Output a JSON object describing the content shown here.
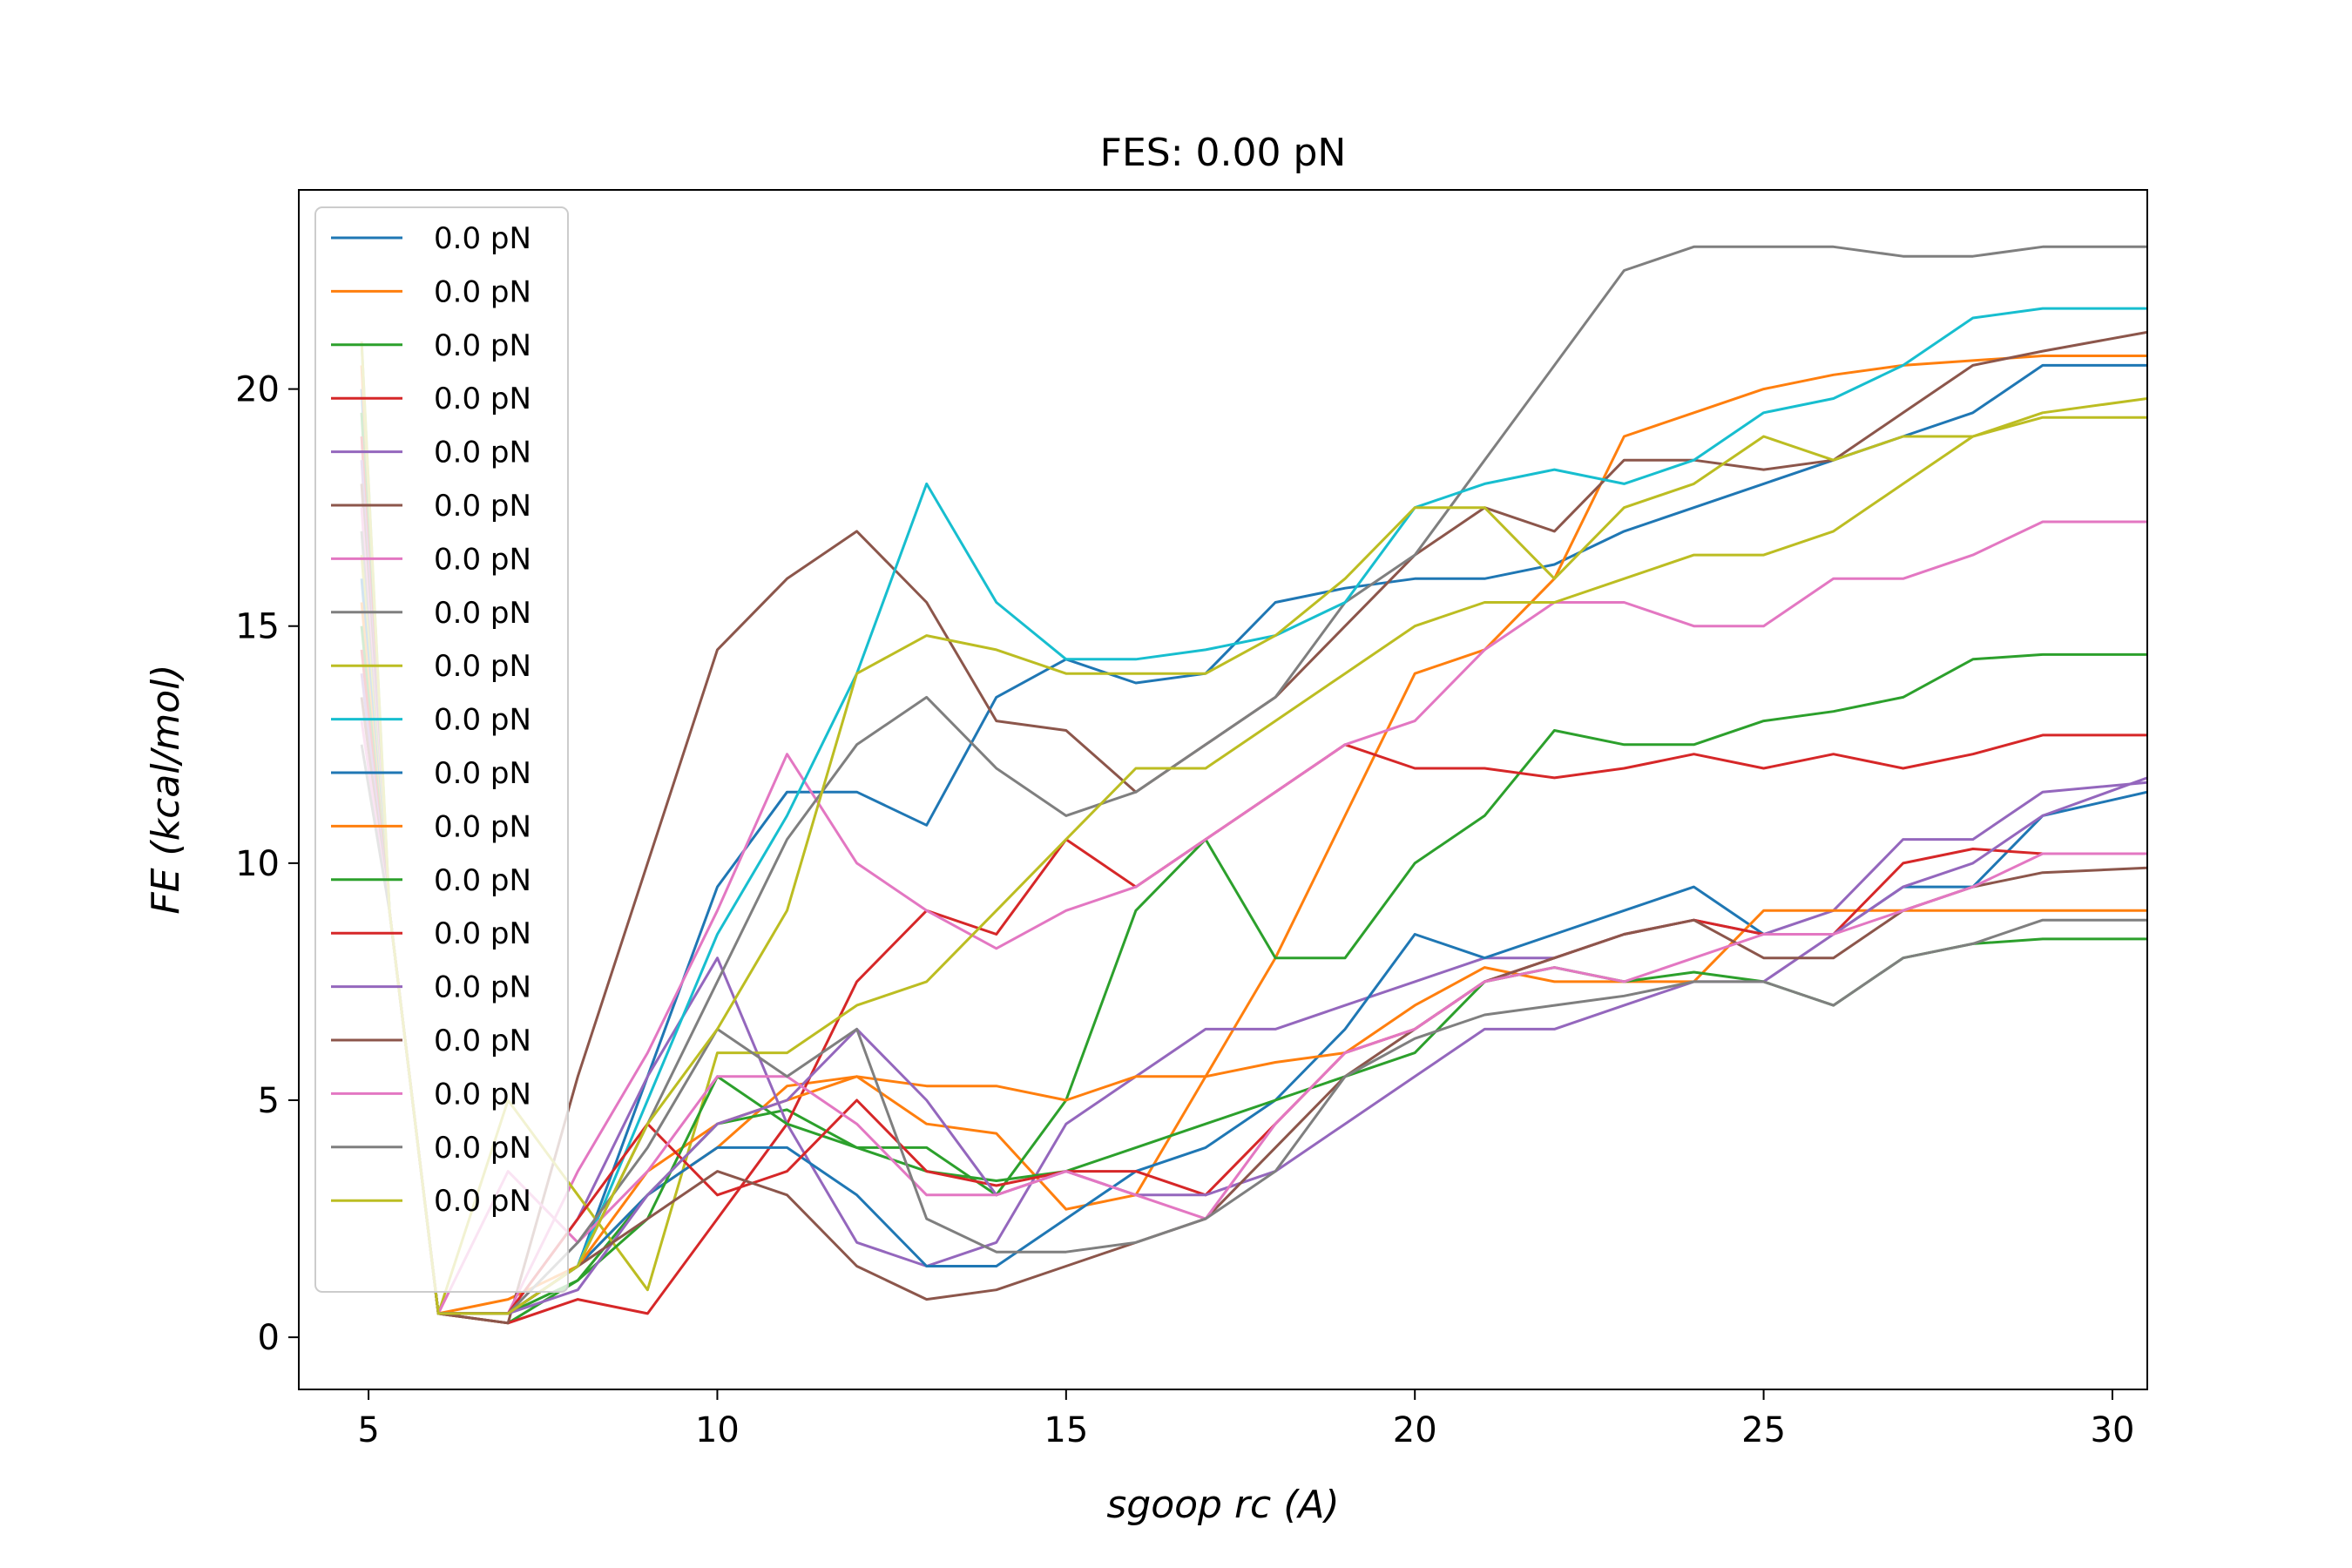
{
  "chart_data": {
    "type": "line",
    "title": "FES: 0.00 pN",
    "xlabel": "sgoop rc (A)",
    "ylabel": "FE (kcal/mol)",
    "xlim": [
      4,
      30.5
    ],
    "ylim": [
      -1.1,
      24.2
    ],
    "xticks": [
      5,
      10,
      15,
      20,
      25,
      30
    ],
    "yticks": [
      0,
      5,
      10,
      15,
      20
    ],
    "legend_position": "upper-left",
    "grid": false,
    "palette": [
      "#1f77b4",
      "#ff7f0e",
      "#2ca02c",
      "#d62728",
      "#9467bd",
      "#8c564b",
      "#e377c2",
      "#7f7f7f",
      "#bcbd22",
      "#17becf"
    ],
    "series": [
      {
        "name": "0.0 pN",
        "x": [
          4.9,
          5.3,
          6.0,
          7.0,
          8.0,
          9.0,
          10.0,
          11.0,
          12.0,
          13.0,
          14.0,
          15.0,
          16.0,
          17.0,
          18.0,
          19.0,
          20.0,
          21.0,
          22.0,
          23.0,
          24.0,
          25.0,
          26.0,
          27.0,
          28.0,
          29.0,
          30.5
        ],
        "y": [
          20.0,
          9.0,
          0.5,
          0.5,
          1.5,
          5.5,
          9.5,
          11.5,
          11.5,
          10.8,
          13.5,
          14.3,
          13.8,
          14.0,
          15.5,
          15.8,
          16.0,
          16.0,
          16.3,
          17.0,
          17.5,
          18.0,
          18.5,
          19.0,
          19.5,
          20.5,
          20.5
        ]
      },
      {
        "name": "0.0 pN",
        "x": [
          4.9,
          5.3,
          6.0,
          7.0,
          8.0,
          9.0,
          10.0,
          11.0,
          12.0,
          13.0,
          14.0,
          15.0,
          16.0,
          17.0,
          18.0,
          19.0,
          20.0,
          21.0,
          22.0,
          23.0,
          24.0,
          25.0,
          26.0,
          27.0,
          28.0,
          29.0,
          30.5
        ],
        "y": [
          20.5,
          9.0,
          0.5,
          0.8,
          1.5,
          3.0,
          4.0,
          5.3,
          5.5,
          4.5,
          4.3,
          2.7,
          3.0,
          5.5,
          8.0,
          11.0,
          14.0,
          14.5,
          16.0,
          19.0,
          19.5,
          20.0,
          20.3,
          20.5,
          20.6,
          20.7,
          20.7
        ]
      },
      {
        "name": "0.0 pN",
        "x": [
          4.9,
          5.3,
          6.0,
          7.0,
          8.0,
          9.0,
          10.0,
          11.0,
          12.0,
          13.0,
          14.0,
          15.0,
          16.0,
          17.0,
          18.0,
          19.0,
          20.0,
          21.0,
          22.0,
          23.0,
          24.0,
          25.0,
          26.0,
          27.0,
          28.0,
          29.0,
          30.5
        ],
        "y": [
          19.5,
          9.0,
          0.5,
          0.3,
          1.2,
          3.0,
          4.5,
          4.8,
          4.0,
          4.0,
          3.0,
          5.0,
          9.0,
          10.5,
          8.0,
          8.0,
          10.0,
          11.0,
          12.8,
          12.5,
          12.5,
          13.0,
          13.2,
          13.5,
          14.3,
          14.4,
          14.4
        ]
      },
      {
        "name": "0.0 pN",
        "x": [
          4.9,
          5.3,
          6.0,
          7.0,
          8.0,
          9.0,
          10.0,
          11.0,
          12.0,
          13.0,
          14.0,
          15.0,
          16.0,
          17.0,
          18.0,
          19.0,
          20.0,
          21.0,
          22.0,
          23.0,
          24.0,
          25.0,
          26.0,
          27.0,
          28.0,
          29.0,
          30.5
        ],
        "y": [
          19.0,
          9.0,
          0.5,
          0.3,
          0.8,
          0.5,
          2.5,
          4.5,
          7.5,
          9.0,
          8.5,
          10.5,
          9.5,
          10.5,
          11.5,
          12.5,
          12.0,
          12.0,
          11.8,
          12.0,
          12.3,
          12.0,
          12.3,
          12.0,
          12.3,
          12.7,
          12.7
        ]
      },
      {
        "name": "0.0 pN",
        "x": [
          4.9,
          5.3,
          6.0,
          7.0,
          8.0,
          9.0,
          10.0,
          11.0,
          12.0,
          13.0,
          14.0,
          15.0,
          16.0,
          17.0,
          18.0,
          19.0,
          20.0,
          21.0,
          22.0,
          23.0,
          24.0,
          25.0,
          26.0,
          27.0,
          28.0,
          29.0,
          30.5
        ],
        "y": [
          18.5,
          9.0,
          0.5,
          0.5,
          2.5,
          5.5,
          8.0,
          4.5,
          2.0,
          1.5,
          2.0,
          4.5,
          5.5,
          6.5,
          6.5,
          7.0,
          7.5,
          8.0,
          8.0,
          8.5,
          8.8,
          8.5,
          9.0,
          10.5,
          10.5,
          11.5,
          11.7
        ]
      },
      {
        "name": "0.0 pN",
        "x": [
          4.9,
          5.3,
          6.0,
          7.0,
          8.0,
          9.0,
          10.0,
          11.0,
          12.0,
          13.0,
          14.0,
          15.0,
          16.0,
          17.0,
          18.0,
          19.0,
          20.0,
          21.0,
          22.0,
          23.0,
          24.0,
          25.0,
          26.0,
          27.0,
          28.0,
          29.0,
          30.5
        ],
        "y": [
          18.0,
          9.0,
          0.5,
          0.3,
          5.5,
          10.0,
          14.5,
          16.0,
          17.0,
          15.5,
          13.0,
          12.8,
          11.5,
          12.5,
          13.5,
          15.0,
          16.5,
          17.5,
          17.0,
          18.5,
          18.5,
          18.3,
          18.5,
          19.5,
          20.5,
          20.8,
          21.2
        ]
      },
      {
        "name": "0.0 pN",
        "x": [
          4.9,
          5.3,
          6.0,
          7.0,
          8.0,
          9.0,
          10.0,
          11.0,
          12.0,
          13.0,
          14.0,
          15.0,
          16.0,
          17.0,
          18.0,
          19.0,
          20.0,
          21.0,
          22.0,
          23.0,
          24.0,
          25.0,
          26.0,
          27.0,
          28.0,
          29.0,
          30.5
        ],
        "y": [
          17.5,
          9.0,
          0.5,
          0.5,
          3.5,
          6.0,
          9.0,
          12.3,
          10.0,
          9.0,
          8.2,
          9.0,
          9.5,
          10.5,
          11.5,
          12.5,
          13.0,
          14.5,
          15.5,
          15.5,
          15.0,
          15.0,
          16.0,
          16.0,
          16.5,
          17.2,
          17.2
        ]
      },
      {
        "name": "0.0 pN",
        "x": [
          4.9,
          5.3,
          6.0,
          7.0,
          8.0,
          9.0,
          10.0,
          11.0,
          12.0,
          13.0,
          14.0,
          15.0,
          16.0,
          17.0,
          18.0,
          19.0,
          20.0,
          21.0,
          22.0,
          23.0,
          24.0,
          25.0,
          26.0,
          27.0,
          28.0,
          29.0,
          30.5
        ],
        "y": [
          17.0,
          9.0,
          0.5,
          0.5,
          1.5,
          4.5,
          7.5,
          10.5,
          12.5,
          13.5,
          12.0,
          11.0,
          11.5,
          12.5,
          13.5,
          15.5,
          16.5,
          18.5,
          20.5,
          22.5,
          23.0,
          23.0,
          23.0,
          22.8,
          22.8,
          23.0,
          23.0
        ]
      },
      {
        "name": "0.0 pN",
        "x": [
          4.9,
          5.3,
          6.0,
          7.0,
          8.0,
          9.0,
          10.0,
          11.0,
          12.0,
          13.0,
          14.0,
          15.0,
          16.0,
          17.0,
          18.0,
          19.0,
          20.0,
          21.0,
          22.0,
          23.0,
          24.0,
          25.0,
          26.0,
          27.0,
          28.0,
          29.0,
          30.5
        ],
        "y": [
          16.5,
          9.0,
          0.5,
          5.0,
          3.0,
          1.0,
          6.0,
          6.0,
          7.0,
          7.5,
          9.0,
          10.5,
          12.0,
          12.0,
          13.0,
          14.0,
          15.0,
          15.5,
          15.5,
          16.0,
          16.5,
          16.5,
          17.0,
          18.0,
          19.0,
          19.5,
          19.8
        ]
      },
      {
        "name": "0.0 pN",
        "x": [
          4.9,
          5.3,
          6.0,
          7.0,
          8.0,
          9.0,
          10.0,
          11.0,
          12.0,
          13.0,
          14.0,
          15.0,
          16.0,
          17.0,
          18.0,
          19.0,
          20.0,
          21.0,
          22.0,
          23.0,
          24.0,
          25.0,
          26.0,
          27.0,
          28.0,
          29.0,
          30.5
        ],
        "y": [
          21.0,
          9.0,
          0.5,
          0.5,
          1.5,
          5.0,
          8.5,
          11.0,
          14.0,
          18.0,
          15.5,
          14.3,
          14.3,
          14.5,
          14.8,
          15.5,
          17.5,
          18.0,
          18.3,
          18.0,
          18.5,
          19.5,
          19.8,
          20.5,
          21.5,
          21.7,
          21.7
        ]
      },
      {
        "name": "0.0 pN",
        "x": [
          4.9,
          5.3,
          6.0,
          7.0,
          8.0,
          9.0,
          10.0,
          11.0,
          12.0,
          13.0,
          14.0,
          15.0,
          16.0,
          17.0,
          18.0,
          19.0,
          20.0,
          21.0,
          22.0,
          23.0,
          24.0,
          25.0,
          26.0,
          27.0,
          28.0,
          29.0,
          30.5
        ],
        "y": [
          16.0,
          9.0,
          0.5,
          0.5,
          1.5,
          3.0,
          4.0,
          4.0,
          3.0,
          1.5,
          1.5,
          2.5,
          3.5,
          4.0,
          5.0,
          6.5,
          8.5,
          8.0,
          8.5,
          9.0,
          9.5,
          8.5,
          8.5,
          9.5,
          9.5,
          11.0,
          11.5
        ]
      },
      {
        "name": "0.0 pN",
        "x": [
          4.9,
          5.3,
          6.0,
          7.0,
          8.0,
          9.0,
          10.0,
          11.0,
          12.0,
          13.0,
          14.0,
          15.0,
          16.0,
          17.0,
          18.0,
          19.0,
          20.0,
          21.0,
          22.0,
          23.0,
          24.0,
          25.0,
          26.0,
          27.0,
          28.0,
          29.0,
          30.5
        ],
        "y": [
          15.5,
          9.0,
          0.5,
          0.5,
          1.5,
          3.5,
          4.5,
          5.0,
          5.5,
          5.3,
          5.3,
          5.0,
          5.5,
          5.5,
          5.8,
          6.0,
          7.0,
          7.8,
          7.5,
          7.5,
          7.5,
          9.0,
          9.0,
          9.0,
          9.0,
          9.0,
          9.0
        ]
      },
      {
        "name": "0.0 pN",
        "x": [
          4.9,
          5.3,
          6.0,
          7.0,
          8.0,
          9.0,
          10.0,
          11.0,
          12.0,
          13.0,
          14.0,
          15.0,
          16.0,
          17.0,
          18.0,
          19.0,
          20.0,
          21.0,
          22.0,
          23.0,
          24.0,
          25.0,
          26.0,
          27.0,
          28.0,
          29.0,
          30.5
        ],
        "y": [
          15.0,
          9.0,
          0.5,
          0.5,
          1.2,
          2.5,
          5.5,
          4.5,
          4.0,
          3.5,
          3.3,
          3.5,
          4.0,
          4.5,
          5.0,
          5.5,
          6.0,
          7.5,
          7.8,
          7.5,
          7.7,
          7.5,
          7.0,
          8.0,
          8.3,
          8.4,
          8.4
        ]
      },
      {
        "name": "0.0 pN",
        "x": [
          4.9,
          5.3,
          6.0,
          7.0,
          8.0,
          9.0,
          10.0,
          11.0,
          12.0,
          13.0,
          14.0,
          15.0,
          16.0,
          17.0,
          18.0,
          19.0,
          20.0,
          21.0,
          22.0,
          23.0,
          24.0,
          25.0,
          26.0,
          27.0,
          28.0,
          29.0,
          30.5
        ],
        "y": [
          14.5,
          9.0,
          0.5,
          0.5,
          2.5,
          4.5,
          3.0,
          3.5,
          5.0,
          3.5,
          3.2,
          3.5,
          3.5,
          3.0,
          4.5,
          6.0,
          6.5,
          7.5,
          8.0,
          8.5,
          8.8,
          8.5,
          8.5,
          10.0,
          10.3,
          10.2,
          10.2
        ]
      },
      {
        "name": "0.0 pN",
        "x": [
          4.9,
          5.3,
          6.0,
          7.0,
          8.0,
          9.0,
          10.0,
          11.0,
          12.0,
          13.0,
          14.0,
          15.0,
          16.0,
          17.0,
          18.0,
          19.0,
          20.0,
          21.0,
          22.0,
          23.0,
          24.0,
          25.0,
          26.0,
          27.0,
          28.0,
          29.0,
          30.5
        ],
        "y": [
          14.0,
          9.0,
          0.5,
          0.5,
          1.0,
          3.0,
          4.5,
          5.0,
          6.5,
          5.0,
          3.0,
          3.5,
          3.0,
          3.0,
          3.5,
          4.5,
          5.5,
          6.5,
          6.5,
          7.0,
          7.5,
          7.5,
          8.5,
          9.5,
          10.0,
          11.0,
          11.8
        ]
      },
      {
        "name": "0.0 pN",
        "x": [
          4.9,
          5.3,
          6.0,
          7.0,
          8.0,
          9.0,
          10.0,
          11.0,
          12.0,
          13.0,
          14.0,
          15.0,
          16.0,
          17.0,
          18.0,
          19.0,
          20.0,
          21.0,
          22.0,
          23.0,
          24.0,
          25.0,
          26.0,
          27.0,
          28.0,
          29.0,
          30.5
        ],
        "y": [
          13.5,
          9.0,
          0.5,
          0.5,
          1.5,
          2.5,
          3.5,
          3.0,
          1.5,
          0.8,
          1.0,
          1.5,
          2.0,
          2.5,
          4.0,
          5.5,
          6.5,
          7.5,
          8.0,
          8.5,
          8.8,
          8.0,
          8.0,
          9.0,
          9.5,
          9.8,
          9.9
        ]
      },
      {
        "name": "0.0 pN",
        "x": [
          4.9,
          5.3,
          6.0,
          7.0,
          8.0,
          9.0,
          10.0,
          11.0,
          12.0,
          13.0,
          14.0,
          15.0,
          16.0,
          17.0,
          18.0,
          19.0,
          20.0,
          21.0,
          22.0,
          23.0,
          24.0,
          25.0,
          26.0,
          27.0,
          28.0,
          29.0,
          30.5
        ],
        "y": [
          13.0,
          9.0,
          0.5,
          3.5,
          2.0,
          3.5,
          5.5,
          5.5,
          4.5,
          3.0,
          3.0,
          3.5,
          3.0,
          2.5,
          4.5,
          6.0,
          6.5,
          7.5,
          7.8,
          7.5,
          8.0,
          8.5,
          8.5,
          9.0,
          9.5,
          10.2,
          10.2
        ]
      },
      {
        "name": "0.0 pN",
        "x": [
          4.9,
          5.3,
          6.0,
          7.0,
          8.0,
          9.0,
          10.0,
          11.0,
          12.0,
          13.0,
          14.0,
          15.0,
          16.0,
          17.0,
          18.0,
          19.0,
          20.0,
          21.0,
          22.0,
          23.0,
          24.0,
          25.0,
          26.0,
          27.0,
          28.0,
          29.0,
          30.5
        ],
        "y": [
          12.5,
          9.0,
          0.5,
          0.5,
          2.0,
          4.0,
          6.5,
          5.5,
          6.5,
          2.5,
          1.8,
          1.8,
          2.0,
          2.5,
          3.5,
          5.5,
          6.3,
          6.8,
          7.0,
          7.2,
          7.5,
          7.5,
          7.0,
          8.0,
          8.3,
          8.8,
          8.8
        ]
      },
      {
        "name": "0.0 pN",
        "x": [
          4.9,
          5.3,
          6.0,
          7.0,
          8.0,
          9.0,
          10.0,
          11.0,
          12.0,
          13.0,
          14.0,
          15.0,
          16.0,
          17.0,
          18.0,
          19.0,
          20.0,
          21.0,
          22.0,
          23.0,
          24.0,
          25.0,
          26.0,
          27.0,
          28.0,
          29.0,
          30.5
        ],
        "y": [
          21.0,
          9.0,
          0.5,
          0.5,
          1.5,
          4.5,
          6.5,
          9.0,
          14.0,
          14.8,
          14.5,
          14.0,
          14.0,
          14.0,
          14.8,
          16.0,
          17.5,
          17.5,
          16.0,
          17.5,
          18.0,
          19.0,
          18.5,
          19.0,
          19.0,
          19.4,
          19.4
        ]
      }
    ]
  }
}
